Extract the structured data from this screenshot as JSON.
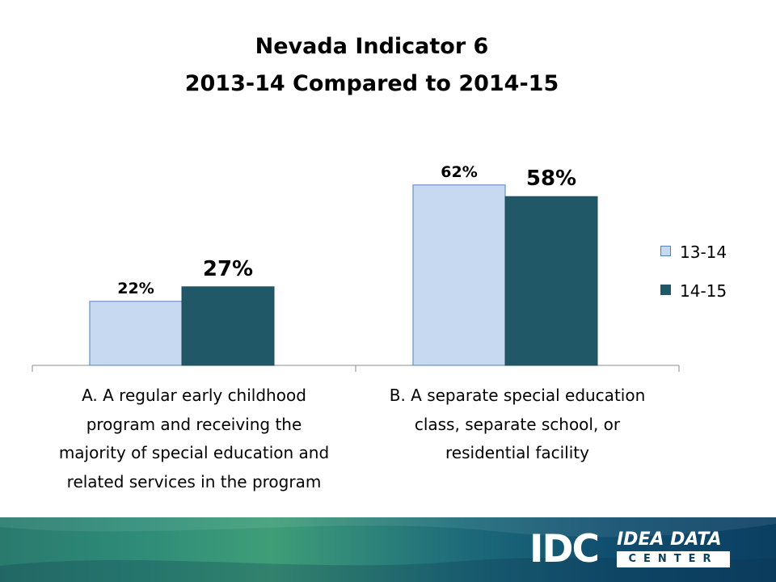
{
  "chart_data": {
    "type": "bar",
    "title": "Nevada Indicator 6",
    "subtitle": "2013-14 Compared to 2014-15",
    "categories": [
      "A. A regular early childhood program and receiving the majority of special education and related services in the program",
      "B. A separate special education class, separate school, or residential facility"
    ],
    "series": [
      {
        "name": "13-14",
        "values": [
          22,
          62
        ],
        "labels": [
          "22%",
          "62%"
        ],
        "color": "#c6d9f1"
      },
      {
        "name": "14-15",
        "values": [
          27,
          58
        ],
        "labels": [
          "27%",
          "58%"
        ],
        "color": "#215868"
      }
    ],
    "legend_position": "right",
    "grid": false
  },
  "category_lines": [
    [
      "A. A regular early childhood",
      "program and receiving the",
      "majority of special education and",
      "related services in the program"
    ],
    [
      "B. A separate special education",
      "class, separate school, or",
      "residential facility"
    ]
  ],
  "footer": {
    "logo_mark": "IDC",
    "logo_name": "IDEA DATA",
    "logo_sub": "CENTER"
  }
}
